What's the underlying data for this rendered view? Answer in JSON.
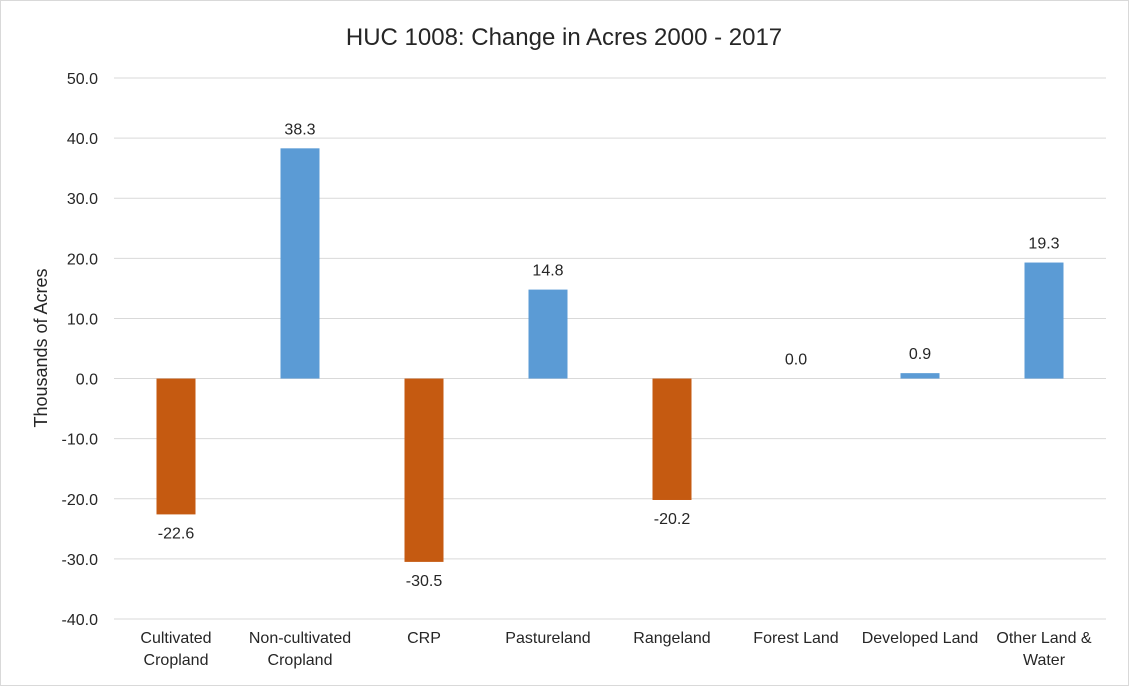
{
  "chart_data": {
    "type": "bar",
    "title": "HUC 1008: Change in Acres 2000 - 2017",
    "xlabel": "",
    "ylabel": "Thousands of Acres",
    "ylim": [
      -40,
      50
    ],
    "ytick_step": 10,
    "ytick_labels": [
      "50.0",
      "40.0",
      "30.0",
      "20.0",
      "10.0",
      "0.0",
      "-10.0",
      "-20.0",
      "-30.0",
      "-40.0"
    ],
    "grid": true,
    "legend": "none",
    "categories": [
      [
        "Cultivated",
        "Cropland"
      ],
      [
        "Non-cultivated",
        "Cropland"
      ],
      [
        "CRP"
      ],
      [
        "Pastureland"
      ],
      [
        "Rangeland"
      ],
      [
        "Forest Land"
      ],
      [
        "Developed Land"
      ],
      [
        "Other Land &",
        "Water"
      ]
    ],
    "values": [
      -22.6,
      38.3,
      -30.5,
      14.8,
      -20.2,
      0.0,
      0.9,
      19.3
    ],
    "data_labels": [
      "-22.6",
      "38.3",
      "-30.5",
      "14.8",
      "-20.2",
      "0.0",
      "0.9",
      "19.3"
    ],
    "colors": {
      "positive": "#5b9bd5",
      "negative": "#c55a11",
      "grid": "#d9d9d9",
      "text": "#262626"
    }
  }
}
